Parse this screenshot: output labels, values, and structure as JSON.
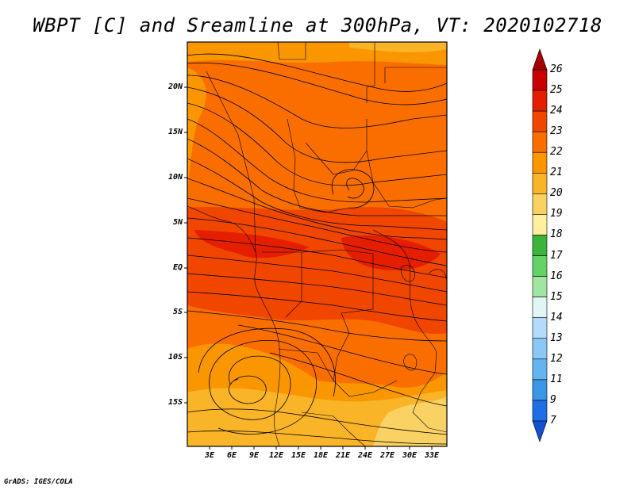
{
  "title": "WBPT [C] and Sreamline at 300hPa, VT: 2020102718",
  "footer": "GrADS: IGES/COLA",
  "map": {
    "lat_labels": [
      "20N",
      "15N",
      "10N",
      "5N",
      "EQ",
      "5S",
      "10S",
      "15S"
    ],
    "lon_labels": [
      "3E",
      "6E",
      "9E",
      "12E",
      "15E",
      "18E",
      "21E",
      "24E",
      "27E",
      "30E",
      "33E"
    ]
  },
  "chart_data": {
    "type": "heatmap",
    "title": "WBPT [C] and Sreamline at 300hPa, VT: 2020102718",
    "variable": "WBPT",
    "units": "C",
    "level": "300hPa",
    "valid_time": "2020102718",
    "lon_range": [
      0,
      35
    ],
    "lat_range": [
      -20,
      24
    ],
    "colorbar": {
      "levels": [
        "26",
        "25",
        "24",
        "23",
        "22",
        "21",
        "20",
        "19",
        "18",
        "17",
        "16",
        "15",
        "14",
        "13",
        "12",
        "11",
        "9",
        "7"
      ],
      "colors": [
        "#a50000",
        "#c80000",
        "#e61e00",
        "#f04600",
        "#fa6e00",
        "#fa9600",
        "#fab428",
        "#fad264",
        "#fff0a0",
        "#3cb43c",
        "#64d264",
        "#a0e6a0",
        "#e1f5f5",
        "#b4dcfa",
        "#8cc8f5",
        "#64b4f0",
        "#3c96e6",
        "#1e6ee6",
        "#1450d2"
      ]
    }
  }
}
